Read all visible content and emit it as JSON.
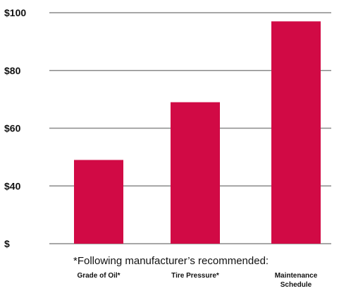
{
  "chart_data": {
    "type": "bar",
    "categories": [
      [
        "Grade of Oil*"
      ],
      [
        "Tire Pressure*"
      ],
      [
        "Maintenance",
        "Schedule"
      ]
    ],
    "values": [
      49,
      69,
      97
    ],
    "ylim": [
      20,
      100
    ],
    "yticks": [
      {
        "value": 20,
        "label": "$"
      },
      {
        "value": 40,
        "label": "$40"
      },
      {
        "value": 60,
        "label": "$60"
      },
      {
        "value": 80,
        "label": "$80"
      },
      {
        "value": 100,
        "label": "$100"
      }
    ],
    "annotation": "*Following manufacturer’s recommended:",
    "grid": true,
    "bar_color": "#d10a45",
    "grid_color": "#8a8a8a"
  }
}
